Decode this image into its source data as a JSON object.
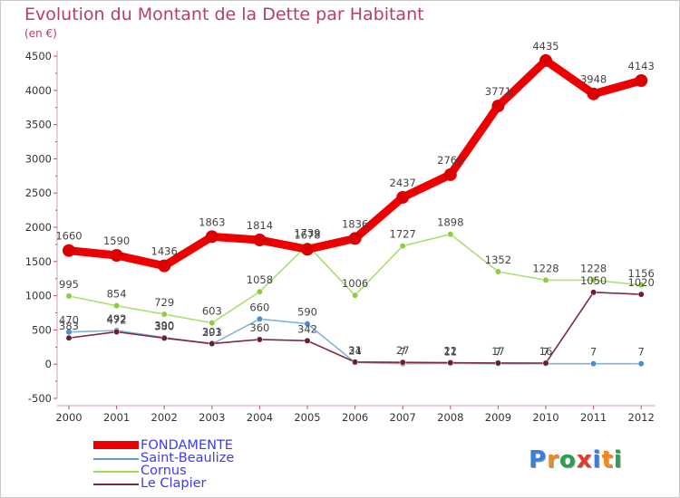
{
  "title": "Evolution du Montant de la Dette par Habitant",
  "unit_label": "(en €)",
  "legend": [
    {
      "name": "FONDAMENTE",
      "color": "#ee0000"
    },
    {
      "name": "Saint-Beaulize",
      "color": "#5f9bd1"
    },
    {
      "name": "Cornus",
      "color": "#99dd55"
    },
    {
      "name": "Le Clapier",
      "color": "#7b2b3b"
    }
  ],
  "logo": {
    "letters": [
      "P",
      "r",
      "o",
      "x",
      "i",
      "t",
      "i"
    ],
    "colors": [
      "#3a7fd8",
      "#f08a1c",
      "#2aa050",
      "#e33a2a",
      "#3a7fd8",
      "#f08a1c",
      "#2aa050"
    ]
  },
  "chart_data": {
    "type": "line",
    "title": "Evolution du Montant de la Dette par Habitant",
    "ylabel": "(en €)",
    "xlabel": "",
    "categories": [
      "2000",
      "2001",
      "2002",
      "2003",
      "2004",
      "2005",
      "2006",
      "2007",
      "2008",
      "2009",
      "2010",
      "2011",
      "2012"
    ],
    "ylim": [
      -500,
      4500
    ],
    "yticks": [
      "-500",
      "0",
      "500",
      "1000",
      "1500",
      "2000",
      "2500",
      "3000",
      "3500",
      "4000",
      "4500"
    ],
    "ytick_values": [
      -500,
      0,
      500,
      1000,
      1500,
      2000,
      2500,
      3000,
      3500,
      4000,
      4500
    ],
    "grid": false,
    "legend_position": "bottom-left",
    "series": [
      {
        "name": "FONDAMENTE",
        "color": "#ee0000",
        "marker_color": "#dd0000",
        "values": [
          1660,
          1590,
          1436,
          1863,
          1814,
          1678,
          1836,
          2437,
          2769,
          3771,
          4435,
          3948,
          4143
        ],
        "labels": [
          "1660",
          "1590",
          "1436",
          "1863",
          "1814",
          "1678",
          "1836",
          "2437",
          "2769",
          "3771",
          "4435",
          "3948",
          "4143"
        ]
      },
      {
        "name": "Saint-Beaulize",
        "color": "#7fb3e0",
        "marker_color": "#4a8ed0",
        "values": [
          470,
          492,
          390,
          293,
          660,
          590,
          24,
          7,
          11,
          7,
          7,
          7,
          7
        ],
        "labels": [
          "470",
          "492",
          "390",
          "293",
          "660",
          "590",
          "24",
          "7",
          "11",
          "7",
          "7",
          "7",
          "7"
        ]
      },
      {
        "name": "Cornus",
        "color": "#a9e070",
        "marker_color": "#8ccd3c",
        "values": [
          995,
          854,
          729,
          603,
          1058,
          1739,
          1006,
          1727,
          1898,
          1352,
          1228,
          1228,
          1156
        ],
        "labels": [
          "995",
          "854",
          "729",
          "603",
          "1058",
          "1739",
          "1006",
          "1727",
          "1898",
          "1352",
          "1228",
          "1228",
          "1156"
        ]
      },
      {
        "name": "Le Clapier",
        "color": "#7b2b3b",
        "marker_color": "#6a1f2f",
        "values": [
          383,
          472,
          380,
          301,
          360,
          342,
          31,
          27,
          22,
          17,
          16,
          1050,
          1020
        ],
        "labels": [
          "383",
          "472",
          "380",
          "301",
          "360",
          "342",
          "31",
          "27",
          "22",
          "17",
          "16",
          "1050",
          "1020"
        ]
      }
    ]
  }
}
